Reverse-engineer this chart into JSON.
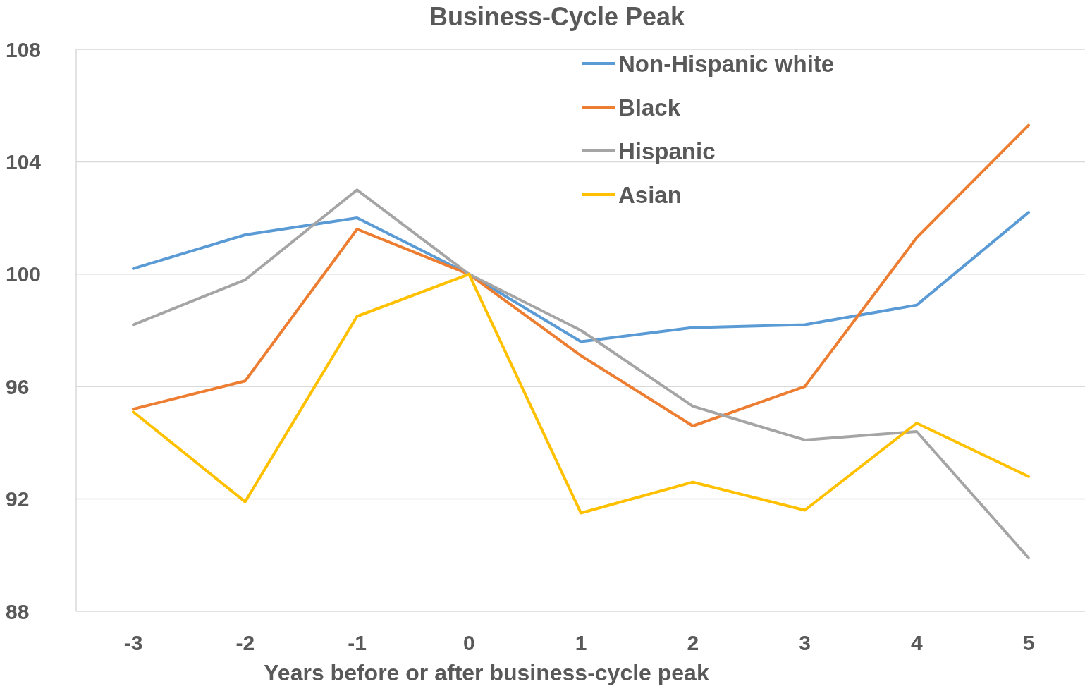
{
  "chart_data": {
    "type": "line",
    "title": "Business-Cycle Peak",
    "xlabel": "Years before or after business-cycle peak",
    "categories": [
      "-3",
      "-2",
      "-1",
      "0",
      "1",
      "2",
      "3",
      "4",
      "5"
    ],
    "series": [
      {
        "name": "Non-Hispanic white",
        "color": "#5b9bd5",
        "values": [
          100.2,
          101.4,
          102.0,
          100,
          97.6,
          98.1,
          98.2,
          98.9,
          102.2
        ]
      },
      {
        "name": "Black",
        "color": "#ed7d31",
        "values": [
          95.2,
          96.2,
          101.6,
          100,
          97.1,
          94.6,
          96.0,
          101.3,
          105.3
        ]
      },
      {
        "name": "Hispanic",
        "color": "#a5a5a5",
        "values": [
          98.2,
          99.8,
          103.0,
          100,
          98.0,
          95.3,
          94.1,
          94.4,
          89.9
        ]
      },
      {
        "name": "Asian",
        "color": "#ffc000",
        "values": [
          95.1,
          91.9,
          98.5,
          100,
          91.5,
          92.6,
          91.6,
          94.7,
          92.8
        ]
      }
    ],
    "ylim": [
      88,
      108
    ],
    "yticks": [
      88,
      92,
      96,
      100,
      104,
      108
    ],
    "grid": "y",
    "legend": "top",
    "marker": "none",
    "line_style": "solid"
  }
}
